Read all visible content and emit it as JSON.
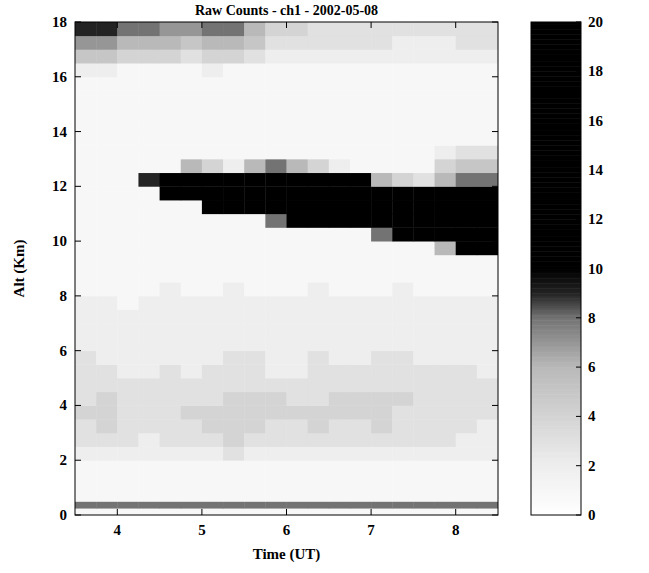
{
  "chart_data": {
    "type": "heatmap",
    "title": "Raw Counts - ch1 - 2002-05-08",
    "x_label": "Time (UT)",
    "y_label": "Alt (Km)",
    "xlim": [
      3.5,
      8.5
    ],
    "xticks": [
      4,
      5,
      6,
      7,
      8
    ],
    "ylim": [
      0,
      18
    ],
    "yticks": [
      0,
      2,
      4,
      6,
      8,
      10,
      12,
      14,
      16,
      18
    ],
    "x_bins": [
      3.5,
      3.75,
      4,
      4.25,
      4.5,
      4.75,
      5,
      5.25,
      5.5,
      5.75,
      6,
      6.25,
      6.5,
      6.75,
      7,
      7.25,
      7.5,
      7.75,
      8,
      8.25,
      8.5
    ],
    "y_bins": [
      0,
      0.25,
      0.5,
      1,
      1.5,
      2,
      2.5,
      3,
      3.5,
      4,
      4.5,
      5,
      5.5,
      6,
      6.5,
      7,
      7.5,
      8,
      8.5,
      9,
      9.5,
      10,
      10.5,
      11,
      11.5,
      12,
      12.5,
      13,
      13.5,
      14,
      14.5,
      15,
      15.5,
      16,
      16.5,
      17,
      17.5,
      18
    ],
    "values": [
      [
        1,
        1,
        1,
        1,
        1,
        1,
        1,
        1,
        1,
        1,
        1,
        1,
        1,
        1,
        1,
        1,
        1,
        1,
        1,
        1
      ],
      [
        8,
        8,
        8,
        8,
        8,
        8,
        8,
        8,
        8,
        8,
        8,
        8,
        8,
        8,
        8,
        8,
        8,
        8,
        8,
        8
      ],
      [
        1,
        1,
        1,
        1,
        1,
        1,
        1,
        1,
        1,
        1,
        1,
        1,
        1,
        1,
        1,
        1,
        1,
        1,
        1,
        1
      ],
      [
        1,
        1,
        1,
        1,
        1,
        1,
        1,
        1,
        1,
        1,
        1,
        1,
        1,
        1,
        1,
        1,
        1,
        1,
        1,
        1
      ],
      [
        1,
        1,
        1,
        1,
        1,
        1,
        1,
        1,
        1,
        1,
        1,
        1,
        1,
        1,
        1,
        1,
        1,
        1,
        1,
        1
      ],
      [
        2,
        2,
        2,
        2,
        2,
        2,
        2,
        3,
        2,
        2,
        2,
        2,
        2,
        2,
        2,
        2,
        2,
        2,
        2,
        2
      ],
      [
        3,
        3,
        3,
        2,
        3,
        3,
        3,
        4,
        3,
        3,
        3,
        3,
        3,
        3,
        3,
        3,
        3,
        3,
        2,
        2
      ],
      [
        3,
        4,
        3,
        3,
        3,
        3,
        4,
        4,
        4,
        3,
        3,
        4,
        3,
        3,
        4,
        3,
        3,
        3,
        3,
        2
      ],
      [
        4,
        4,
        3,
        3,
        3,
        4,
        4,
        4,
        4,
        4,
        4,
        4,
        4,
        4,
        4,
        3,
        3,
        3,
        3,
        3
      ],
      [
        3,
        4,
        3,
        3,
        3,
        3,
        3,
        4,
        4,
        4,
        3,
        3,
        4,
        4,
        4,
        4,
        3,
        3,
        3,
        3
      ],
      [
        3,
        3,
        3,
        3,
        3,
        3,
        3,
        3,
        3,
        3,
        3,
        3,
        3,
        3,
        3,
        3,
        3,
        3,
        3,
        3
      ],
      [
        3,
        3,
        2,
        2,
        3,
        2,
        3,
        3,
        3,
        2,
        2,
        3,
        3,
        3,
        3,
        3,
        3,
        3,
        3,
        2
      ],
      [
        3,
        2,
        2,
        2,
        2,
        2,
        2,
        3,
        3,
        2,
        2,
        3,
        2,
        2,
        3,
        3,
        2,
        2,
        2,
        2
      ],
      [
        2,
        2,
        2,
        2,
        2,
        2,
        2,
        2,
        2,
        2,
        2,
        2,
        2,
        2,
        2,
        2,
        2,
        2,
        2,
        2
      ],
      [
        2,
        2,
        2,
        2,
        2,
        2,
        2,
        2,
        2,
        2,
        2,
        2,
        2,
        2,
        2,
        2,
        2,
        2,
        2,
        2
      ],
      [
        2,
        2,
        2,
        2,
        2,
        2,
        2,
        2,
        2,
        2,
        2,
        2,
        2,
        2,
        2,
        2,
        2,
        2,
        2,
        2
      ],
      [
        2,
        2,
        1,
        2,
        2,
        2,
        2,
        2,
        2,
        2,
        2,
        2,
        2,
        2,
        2,
        2,
        2,
        2,
        2,
        2
      ],
      [
        1,
        1,
        1,
        1,
        2,
        1,
        1,
        2,
        1,
        1,
        1,
        2,
        1,
        1,
        1,
        2,
        1,
        1,
        1,
        1
      ],
      [
        1,
        1,
        1,
        1,
        1,
        1,
        1,
        1,
        1,
        1,
        1,
        1,
        1,
        1,
        1,
        1,
        1,
        1,
        1,
        1
      ],
      [
        1,
        1,
        1,
        1,
        1,
        1,
        1,
        1,
        1,
        1,
        1,
        1,
        1,
        1,
        1,
        1,
        1,
        1,
        1,
        1
      ],
      [
        1,
        1,
        1,
        1,
        1,
        1,
        1,
        1,
        1,
        1,
        1,
        1,
        1,
        1,
        1,
        1,
        1,
        6,
        10,
        14
      ],
      [
        1,
        1,
        1,
        1,
        1,
        1,
        1,
        1,
        1,
        1,
        1,
        1,
        1,
        1,
        8,
        12,
        16,
        20,
        20,
        20
      ],
      [
        1,
        1,
        1,
        1,
        1,
        1,
        1,
        1,
        1,
        8,
        12,
        14,
        16,
        18,
        20,
        20,
        20,
        20,
        20,
        18
      ],
      [
        1,
        1,
        1,
        1,
        1,
        1,
        10,
        16,
        18,
        20,
        20,
        20,
        20,
        20,
        20,
        20,
        20,
        18,
        16,
        14
      ],
      [
        1,
        1,
        1,
        1,
        12,
        16,
        20,
        20,
        20,
        20,
        20,
        20,
        20,
        20,
        20,
        14,
        10,
        12,
        12,
        10
      ],
      [
        1,
        1,
        1,
        9,
        18,
        18,
        18,
        14,
        20,
        20,
        20,
        18,
        16,
        10,
        6,
        4,
        3,
        6,
        8,
        8
      ],
      [
        1,
        1,
        1,
        1,
        1,
        6,
        4,
        2,
        6,
        8,
        6,
        4,
        2,
        1,
        1,
        1,
        1,
        4,
        5,
        5
      ],
      [
        1,
        1,
        1,
        1,
        1,
        1,
        1,
        1,
        1,
        1,
        1,
        1,
        1,
        1,
        1,
        1,
        1,
        2,
        3,
        3
      ],
      [
        1,
        1,
        1,
        1,
        1,
        1,
        1,
        1,
        1,
        1,
        1,
        1,
        1,
        1,
        1,
        1,
        1,
        1,
        1,
        1
      ],
      [
        1,
        1,
        1,
        1,
        1,
        1,
        1,
        1,
        1,
        1,
        1,
        1,
        1,
        1,
        1,
        1,
        1,
        1,
        1,
        1
      ],
      [
        1,
        1,
        1,
        1,
        1,
        1,
        1,
        1,
        1,
        1,
        1,
        1,
        1,
        1,
        1,
        1,
        1,
        1,
        1,
        1
      ],
      [
        1,
        1,
        1,
        1,
        1,
        1,
        1,
        1,
        1,
        1,
        1,
        1,
        1,
        1,
        1,
        1,
        1,
        1,
        1,
        1
      ],
      [
        1,
        1,
        1,
        1,
        1,
        1,
        1,
        1,
        1,
        1,
        1,
        1,
        1,
        1,
        1,
        1,
        1,
        1,
        1,
        1
      ],
      [
        2,
        2,
        1,
        1,
        1,
        1,
        2,
        1,
        1,
        1,
        1,
        1,
        1,
        1,
        1,
        1,
        1,
        1,
        1,
        1
      ],
      [
        5,
        5,
        4,
        4,
        4,
        3,
        4,
        4,
        3,
        2,
        2,
        2,
        2,
        2,
        2,
        2,
        2,
        2,
        2,
        2
      ],
      [
        7,
        7,
        6,
        6,
        6,
        5,
        6,
        6,
        5,
        3,
        3,
        3,
        3,
        3,
        3,
        2,
        2,
        2,
        3,
        3
      ],
      [
        9,
        9,
        8,
        8,
        7,
        7,
        8,
        8,
        6,
        4,
        4,
        3,
        3,
        3,
        3,
        3,
        3,
        3,
        3,
        3
      ]
    ],
    "color_range": [
      0,
      20
    ],
    "color_ticks": [
      0,
      2,
      4,
      6,
      8,
      10,
      12,
      14,
      16,
      18,
      20
    ]
  }
}
